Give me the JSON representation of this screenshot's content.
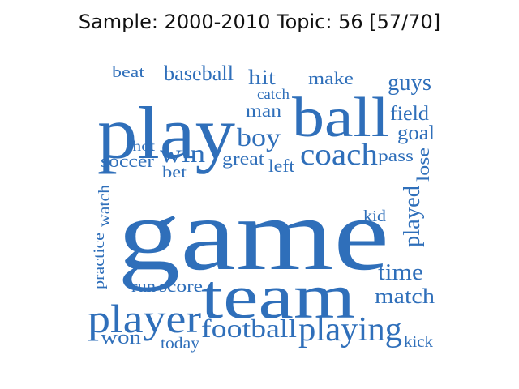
{
  "title": "Sample: 2000-2010 Topic: 56 [57/70]",
  "word_color": "#2f6fba",
  "words": [
    {
      "text": "game"
    },
    {
      "text": "play"
    },
    {
      "text": "ball"
    },
    {
      "text": "team"
    },
    {
      "text": "player"
    },
    {
      "text": "playing"
    },
    {
      "text": "football"
    },
    {
      "text": "coach"
    },
    {
      "text": "win"
    },
    {
      "text": "boy"
    },
    {
      "text": "baseball"
    },
    {
      "text": "beat"
    },
    {
      "text": "hit"
    },
    {
      "text": "catch"
    },
    {
      "text": "man"
    },
    {
      "text": "make"
    },
    {
      "text": "guys"
    },
    {
      "text": "field"
    },
    {
      "text": "goal"
    },
    {
      "text": "shot"
    },
    {
      "text": "soccer"
    },
    {
      "text": "bet"
    },
    {
      "text": "great"
    },
    {
      "text": "left"
    },
    {
      "text": "pass"
    },
    {
      "text": "lose"
    },
    {
      "text": "watch"
    },
    {
      "text": "practice"
    },
    {
      "text": "kid"
    },
    {
      "text": "played"
    },
    {
      "text": "time"
    },
    {
      "text": "match"
    },
    {
      "text": "run"
    },
    {
      "text": "score"
    },
    {
      "text": "won"
    },
    {
      "text": "today"
    },
    {
      "text": "kick"
    }
  ]
}
